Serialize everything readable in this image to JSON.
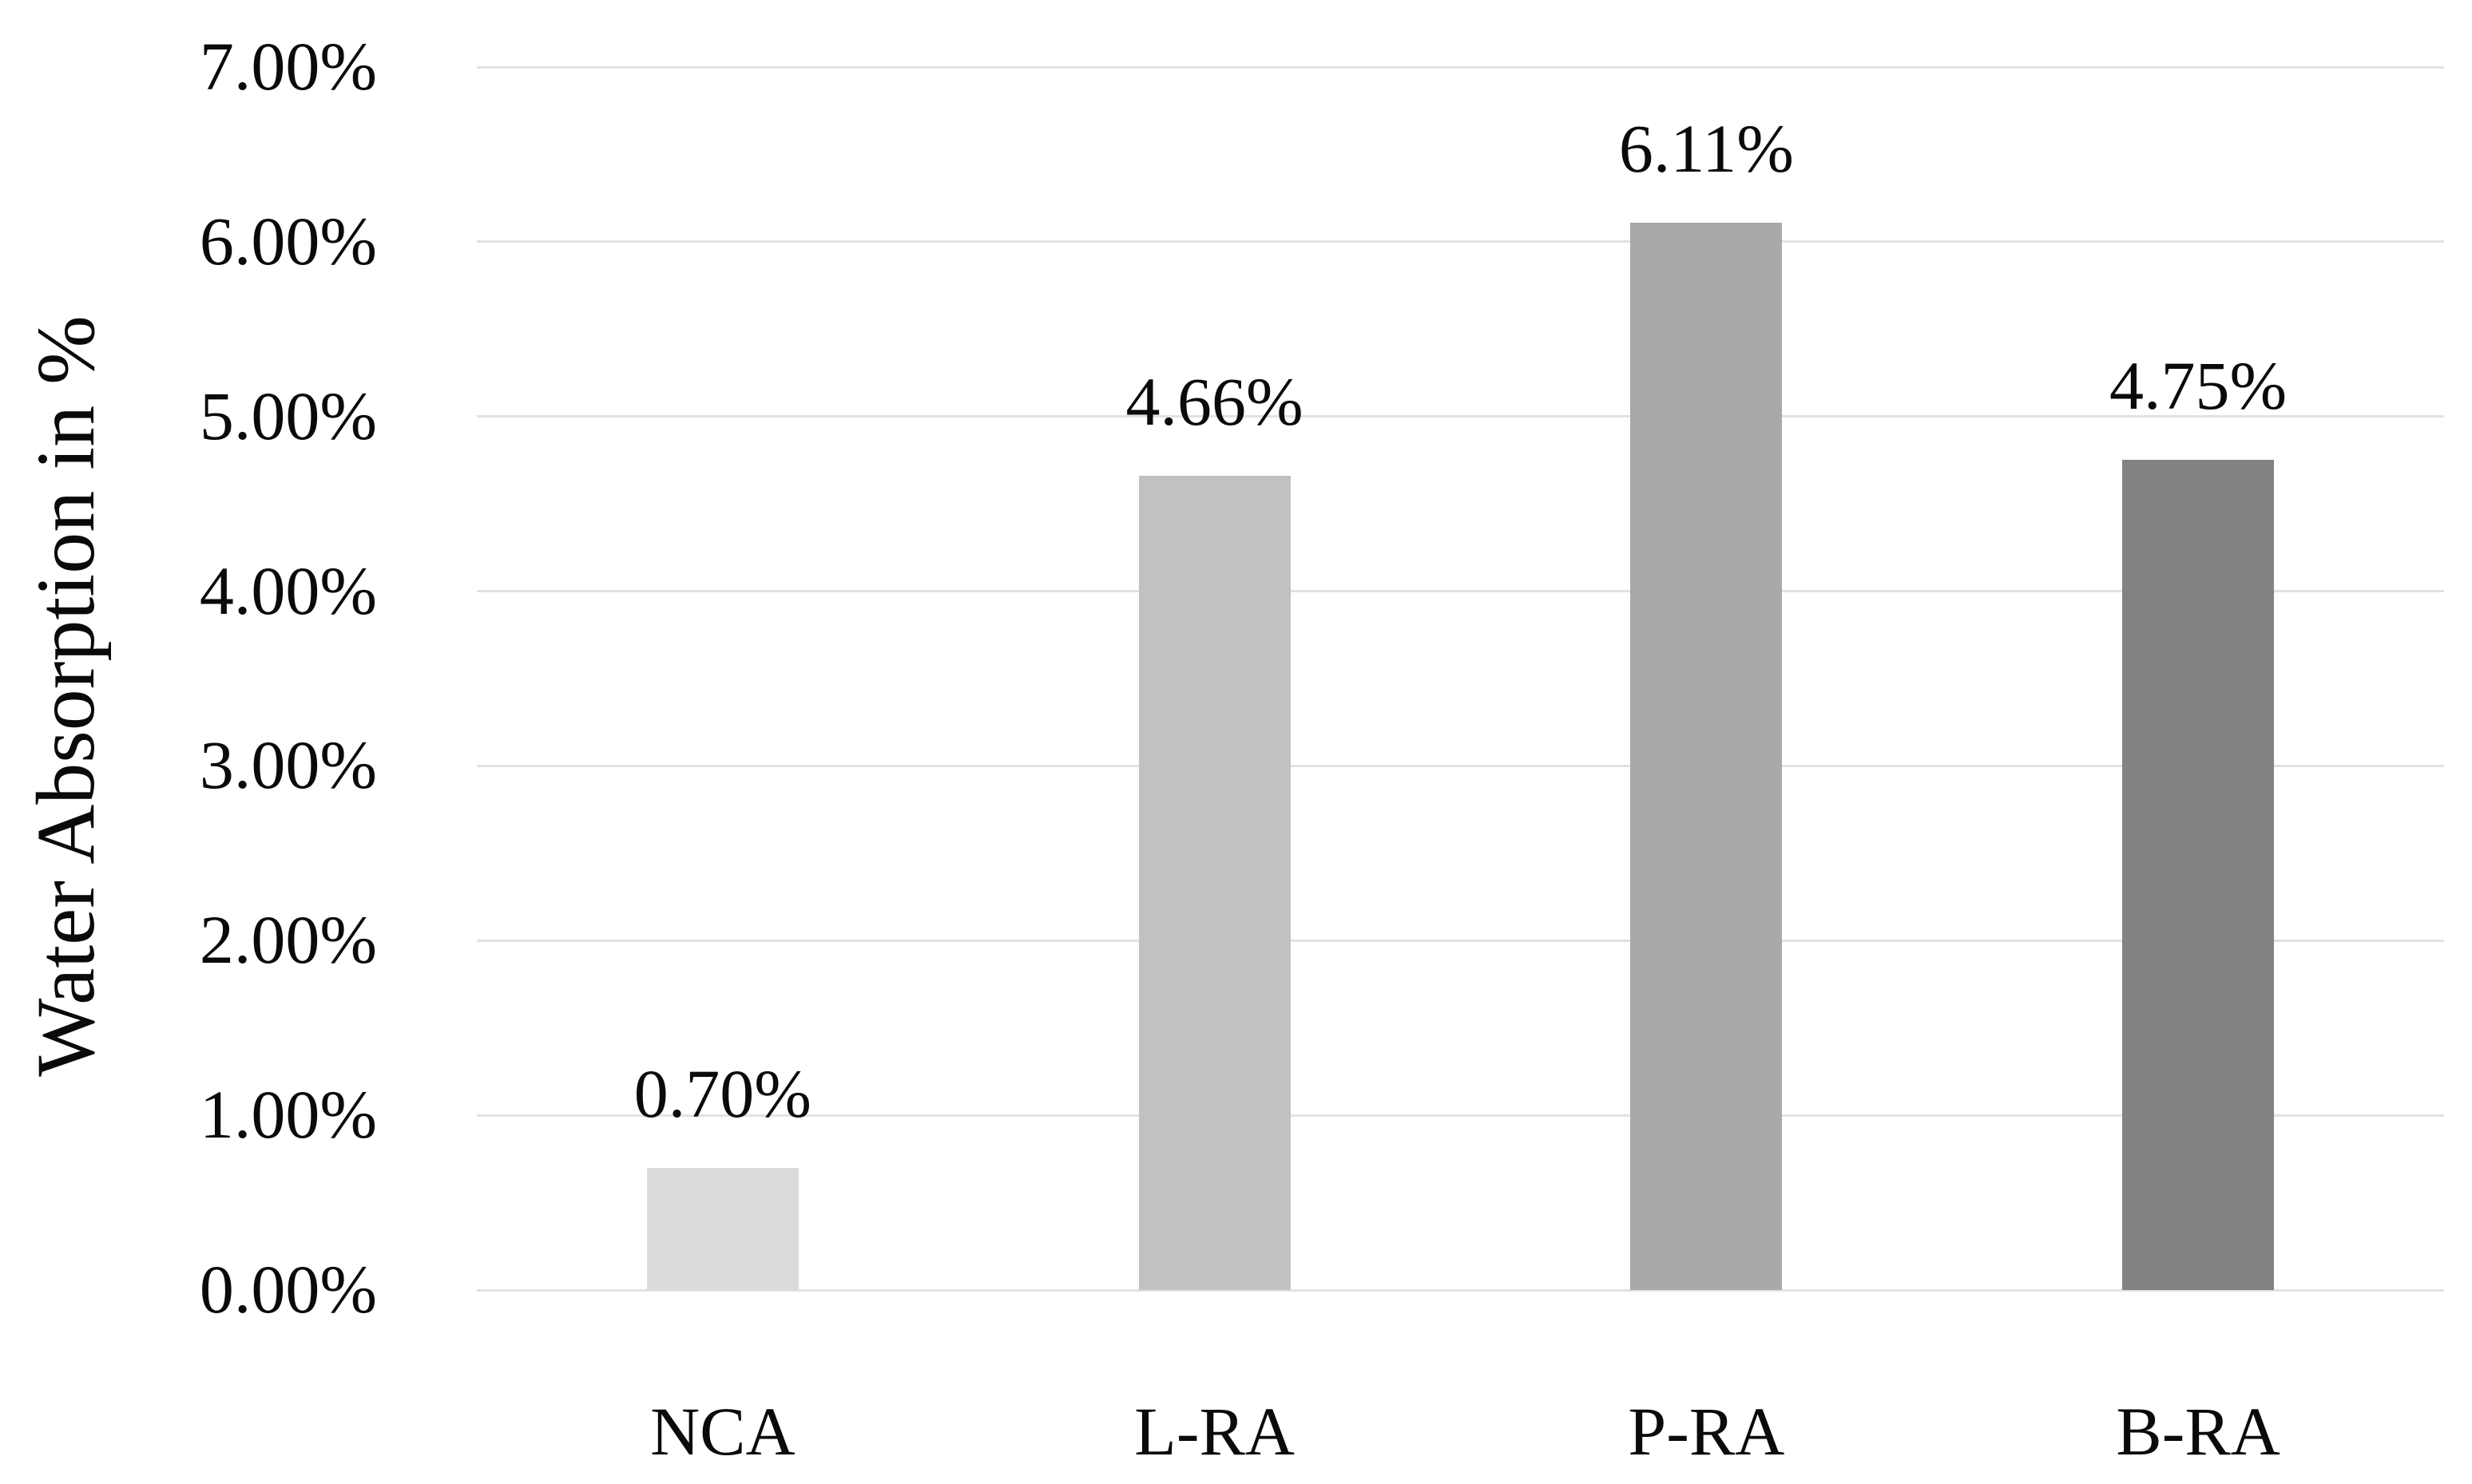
{
  "chart_data": {
    "type": "bar",
    "title": "",
    "xlabel": "",
    "ylabel": "Water Absorption in %",
    "categories": [
      "NCA",
      "L-RA",
      "P-RA",
      "B-RA"
    ],
    "values": [
      0.7,
      4.66,
      6.11,
      4.75
    ],
    "data_labels": [
      "0.70%",
      "4.66%",
      "6.11%",
      "4.75%"
    ],
    "bar_colors": [
      "#dbdbdb",
      "#c1c1c1",
      "#a9a9a9",
      "#828282"
    ],
    "ylim": [
      0,
      7
    ],
    "ytick_step": 1,
    "ytick_labels": [
      "0.00%",
      "1.00%",
      "2.00%",
      "3.00%",
      "4.00%",
      "5.00%",
      "6.00%",
      "7.00%"
    ],
    "grid": true,
    "gridline_color": "#e2e2e2",
    "legend_position": "none",
    "background_color": "#ffffff",
    "text_color": "#0a0a0a"
  }
}
